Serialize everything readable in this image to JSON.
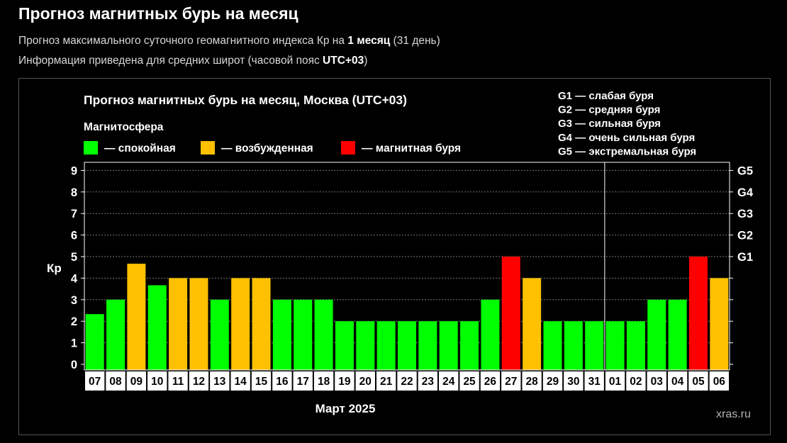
{
  "page": {
    "title": "Прогноз магнитных бурь на месяц",
    "line1": {
      "before": "Прогноз максимального суточного геомагнитного индекса Кр на ",
      "bold": "1 месяц",
      "after": " (31 день)"
    },
    "line2": {
      "before": "Информация приведена для средних широт (часовой пояс ",
      "bold": "UTC+03",
      "after": ")"
    },
    "watermark": "xras.ru"
  },
  "chart_data": {
    "type": "bar",
    "title": "Прогноз магнитных бурь на месяц, Москва (UTC+03)",
    "legend": {
      "title": "Магнитосфера",
      "items": [
        {
          "color": "#00ff00",
          "label": "— спокойная"
        },
        {
          "color": "#ffc000",
          "label": "— возбужденная"
        },
        {
          "color": "#ff0000",
          "label": "— магнитная буря"
        }
      ]
    },
    "g_legend": [
      "G1 — слабая буря",
      "G2 — средняя буря",
      "G3 — сильная буря",
      "G4 — очень сильная буря",
      "G5 — экстремальная буря"
    ],
    "ylabel": "Кр",
    "xlabel": "Март 2025",
    "ylim": [
      0,
      9
    ],
    "yticks": [
      "0",
      "1",
      "2",
      "3",
      "4",
      "5",
      "6",
      "7",
      "8",
      "9"
    ],
    "g_ticks": [
      {
        "value": 5,
        "label": "G1"
      },
      {
        "value": 6,
        "label": "G2"
      },
      {
        "value": 7,
        "label": "G3"
      },
      {
        "value": 8,
        "label": "G4"
      },
      {
        "value": 9,
        "label": "G5"
      }
    ],
    "month_divider_after": "31",
    "categories": [
      "07",
      "08",
      "09",
      "10",
      "11",
      "12",
      "13",
      "14",
      "15",
      "16",
      "17",
      "18",
      "19",
      "20",
      "21",
      "22",
      "23",
      "24",
      "25",
      "26",
      "27",
      "28",
      "29",
      "30",
      "31",
      "01",
      "02",
      "03",
      "04",
      "05",
      "06"
    ],
    "values": [
      2.33,
      3,
      4.67,
      3.67,
      4,
      4,
      3,
      4,
      4,
      3,
      3,
      3,
      2,
      2,
      2,
      2,
      2,
      2,
      2,
      3,
      5,
      4,
      2,
      2,
      2,
      2,
      2,
      3,
      3,
      5,
      4
    ],
    "colors": {
      "quiet": "#00ff00",
      "active": "#ffc000",
      "storm": "#ff0000",
      "grid": "#777777"
    }
  }
}
